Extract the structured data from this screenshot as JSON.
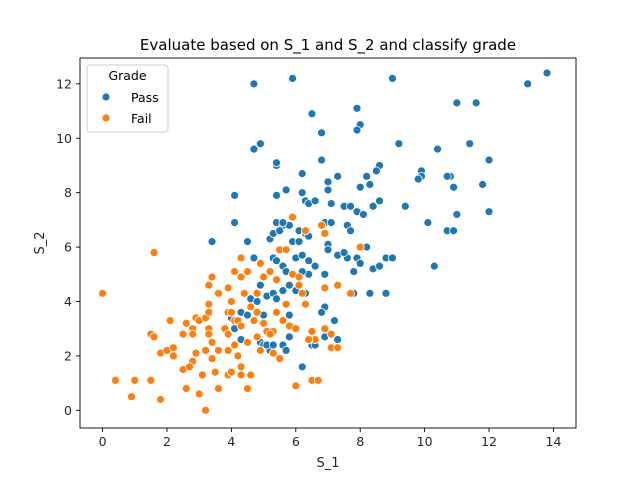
{
  "chart_data": {
    "type": "scatter",
    "title": "Evaluate based on S_1 and S_2 and classify grade",
    "xlabel": "S_1",
    "ylabel": "S_2",
    "xlim": [
      -0.7,
      14.7
    ],
    "ylim": [
      -0.65,
      12.95
    ],
    "xticks": [
      0,
      2,
      4,
      6,
      8,
      10,
      12,
      14
    ],
    "yticks": [
      0,
      2,
      4,
      6,
      8,
      10,
      12
    ],
    "grid": false,
    "legend": {
      "title": "Grade",
      "position": "top-left"
    },
    "series": [
      {
        "name": "Pass",
        "color": "#1f77b4",
        "points": [
          [
            4.7,
            12.0
          ],
          [
            5.9,
            12.2
          ],
          [
            9.0,
            12.2
          ],
          [
            13.8,
            12.4
          ],
          [
            13.2,
            12.0
          ],
          [
            11.0,
            11.3
          ],
          [
            11.6,
            11.3
          ],
          [
            6.5,
            10.9
          ],
          [
            7.9,
            11.1
          ],
          [
            8.0,
            10.5
          ],
          [
            7.9,
            10.3
          ],
          [
            6.8,
            10.2
          ],
          [
            11.4,
            9.8
          ],
          [
            9.2,
            9.8
          ],
          [
            10.4,
            9.6
          ],
          [
            4.9,
            9.8
          ],
          [
            4.7,
            9.6
          ],
          [
            6.8,
            9.2
          ],
          [
            5.4,
            9.0
          ],
          [
            5.4,
            9.1
          ],
          [
            12.0,
            9.2
          ],
          [
            8.6,
            9.0
          ],
          [
            8.5,
            8.8
          ],
          [
            6.2,
            8.7
          ],
          [
            7.3,
            8.6
          ],
          [
            8.2,
            8.6
          ],
          [
            8.3,
            8.3
          ],
          [
            8.0,
            8.2
          ],
          [
            9.9,
            8.8
          ],
          [
            9.9,
            8.6
          ],
          [
            10.8,
            8.6
          ],
          [
            10.7,
            8.6
          ],
          [
            9.8,
            8.5
          ],
          [
            11.8,
            8.3
          ],
          [
            10.9,
            8.2
          ],
          [
            7.0,
            8.4
          ],
          [
            7.0,
            8.1
          ],
          [
            6.2,
            8.0
          ],
          [
            5.7,
            8.1
          ],
          [
            4.1,
            7.9
          ],
          [
            5.4,
            7.9
          ],
          [
            8.6,
            7.7
          ],
          [
            8.4,
            7.5
          ],
          [
            7.5,
            7.5
          ],
          [
            7.7,
            7.5
          ],
          [
            7.9,
            7.3
          ],
          [
            8.1,
            7.2
          ],
          [
            9.4,
            7.5
          ],
          [
            6.3,
            7.7
          ],
          [
            6.4,
            7.6
          ],
          [
            6.6,
            7.7
          ],
          [
            7.1,
            7.6
          ],
          [
            11.0,
            7.2
          ],
          [
            12.0,
            7.3
          ],
          [
            4.1,
            6.9
          ],
          [
            5.4,
            6.9
          ],
          [
            5.6,
            6.8
          ],
          [
            5.8,
            6.8
          ],
          [
            6.1,
            6.6
          ],
          [
            6.3,
            6.5
          ],
          [
            6.4,
            6.4
          ],
          [
            6.9,
            6.9
          ],
          [
            7.1,
            6.9
          ],
          [
            7.6,
            6.8
          ],
          [
            7.7,
            6.6
          ],
          [
            8.2,
            6.0
          ],
          [
            7.9,
            5.6
          ],
          [
            8.0,
            5.4
          ],
          [
            8.4,
            5.2
          ],
          [
            8.6,
            5.3
          ],
          [
            8.8,
            5.6
          ],
          [
            9.0,
            5.6
          ],
          [
            10.1,
            6.9
          ],
          [
            10.7,
            6.6
          ],
          [
            10.9,
            6.6
          ],
          [
            10.3,
            5.3
          ],
          [
            3.4,
            6.2
          ],
          [
            4.5,
            6.2
          ],
          [
            5.2,
            6.3
          ],
          [
            5.3,
            6.5
          ],
          [
            5.5,
            6.6
          ],
          [
            5.6,
            6.9
          ],
          [
            5.9,
            6.2
          ],
          [
            6.1,
            6.2
          ],
          [
            7.0,
            6.1
          ],
          [
            7.0,
            5.9
          ],
          [
            7.3,
            5.7
          ],
          [
            7.6,
            5.6
          ],
          [
            7.5,
            5.8
          ],
          [
            4.7,
            5.6
          ],
          [
            5.3,
            5.6
          ],
          [
            5.4,
            5.5
          ],
          [
            5.6,
            5.3
          ],
          [
            5.7,
            5.1
          ],
          [
            6.0,
            5.6
          ],
          [
            6.2,
            5.7
          ],
          [
            6.4,
            5.5
          ],
          [
            6.6,
            5.3
          ],
          [
            6.9,
            5.0
          ],
          [
            4.9,
            4.6
          ],
          [
            5.1,
            4.2
          ],
          [
            5.3,
            4.3
          ],
          [
            5.4,
            4.1
          ],
          [
            5.6,
            4.4
          ],
          [
            5.8,
            4.6
          ],
          [
            6.0,
            4.4
          ],
          [
            6.3,
            4.3
          ],
          [
            4.4,
            4.3
          ],
          [
            4.6,
            4.1
          ],
          [
            4.8,
            4.0
          ],
          [
            4.0,
            3.4
          ],
          [
            4.3,
            3.6
          ],
          [
            4.5,
            3.5
          ],
          [
            5.0,
            3.5
          ],
          [
            5.4,
            3.6
          ],
          [
            5.6,
            3.3
          ],
          [
            5.8,
            3.5
          ],
          [
            6.9,
            3.8
          ],
          [
            6.8,
            3.6
          ],
          [
            7.2,
            3.3
          ],
          [
            4.1,
            3.0
          ],
          [
            4.3,
            2.6
          ],
          [
            4.9,
            2.5
          ],
          [
            5.0,
            2.4
          ],
          [
            5.2,
            2.2
          ],
          [
            5.1,
            2.4
          ],
          [
            5.3,
            2.4
          ],
          [
            5.6,
            2.4
          ],
          [
            5.8,
            2.7
          ],
          [
            5.7,
            2.2
          ],
          [
            6.5,
            2.4
          ],
          [
            6.6,
            2.4
          ],
          [
            7.3,
            2.6
          ],
          [
            6.9,
            2.7
          ],
          [
            5.5,
            1.9
          ],
          [
            6.2,
            1.6
          ],
          [
            7.8,
            4.3
          ],
          [
            8.3,
            4.3
          ],
          [
            8.8,
            4.3
          ],
          [
            6.4,
            5.0
          ],
          [
            6.2,
            5.1
          ],
          [
            7.8,
            5.1
          ]
        ]
      },
      {
        "name": "Fail",
        "color": "#ff7f0e",
        "points": [
          [
            0.0,
            4.3
          ],
          [
            0.4,
            1.1
          ],
          [
            1.0,
            1.1
          ],
          [
            1.5,
            1.1
          ],
          [
            0.9,
            0.5
          ],
          [
            1.8,
            0.4
          ],
          [
            1.6,
            5.8
          ],
          [
            1.5,
            2.8
          ],
          [
            1.6,
            2.7
          ],
          [
            1.8,
            2.1
          ],
          [
            2.0,
            2.2
          ],
          [
            2.1,
            3.3
          ],
          [
            2.2,
            2.3
          ],
          [
            2.2,
            2.0
          ],
          [
            2.5,
            2.8
          ],
          [
            2.5,
            1.5
          ],
          [
            2.6,
            3.2
          ],
          [
            2.8,
            3.0
          ],
          [
            2.8,
            2.8
          ],
          [
            2.9,
            3.4
          ],
          [
            2.8,
            1.8
          ],
          [
            2.9,
            2.1
          ],
          [
            2.7,
            1.6
          ],
          [
            3.0,
            3.3
          ],
          [
            3.1,
            1.3
          ],
          [
            3.2,
            3.4
          ],
          [
            3.3,
            3.0
          ],
          [
            3.3,
            2.8
          ],
          [
            3.2,
            2.2
          ],
          [
            3.4,
            2.5
          ],
          [
            3.4,
            1.9
          ],
          [
            3.5,
            1.4
          ],
          [
            3.6,
            0.8
          ],
          [
            3.0,
            0.6
          ],
          [
            3.2,
            0.0
          ],
          [
            2.6,
            0.8
          ],
          [
            3.3,
            4.6
          ],
          [
            3.4,
            4.9
          ],
          [
            3.3,
            3.9
          ],
          [
            3.3,
            3.6
          ],
          [
            3.6,
            4.3
          ],
          [
            3.9,
            4.5
          ],
          [
            4.0,
            4.0
          ],
          [
            3.9,
            3.6
          ],
          [
            4.0,
            3.6
          ],
          [
            3.8,
            3.0
          ],
          [
            3.9,
            2.8
          ],
          [
            4.1,
            3.3
          ],
          [
            4.2,
            3.3
          ],
          [
            4.3,
            3.1
          ],
          [
            4.1,
            2.4
          ],
          [
            3.9,
            2.2
          ],
          [
            3.6,
            2.2
          ],
          [
            4.2,
            2.0
          ],
          [
            4.3,
            1.6
          ],
          [
            3.9,
            1.3
          ],
          [
            4.0,
            1.4
          ],
          [
            4.3,
            1.3
          ],
          [
            4.6,
            1.3
          ],
          [
            4.5,
            0.8
          ],
          [
            4.1,
            5.1
          ],
          [
            4.3,
            4.9
          ],
          [
            4.3,
            5.6
          ],
          [
            4.5,
            5.1
          ],
          [
            4.4,
            4.3
          ],
          [
            4.8,
            4.3
          ],
          [
            4.7,
            3.3
          ],
          [
            4.8,
            3.6
          ],
          [
            5.0,
            3.2
          ],
          [
            5.1,
            2.9
          ],
          [
            5.3,
            2.9
          ],
          [
            5.4,
            3.6
          ],
          [
            5.6,
            3.3
          ],
          [
            4.8,
            2.7
          ],
          [
            4.9,
            2.2
          ],
          [
            4.5,
            2.5
          ],
          [
            5.3,
            2.1
          ],
          [
            5.5,
            1.9
          ],
          [
            4.9,
            5.4
          ],
          [
            5.0,
            4.9
          ],
          [
            5.2,
            5.1
          ],
          [
            5.4,
            4.8
          ],
          [
            5.5,
            5.9
          ],
          [
            5.7,
            5.9
          ],
          [
            5.9,
            5.0
          ],
          [
            6.1,
            4.9
          ],
          [
            6.1,
            4.6
          ],
          [
            6.2,
            4.3
          ],
          [
            5.7,
            3.9
          ],
          [
            6.3,
            3.9
          ],
          [
            5.8,
            3.1
          ],
          [
            6.0,
            3.0
          ],
          [
            6.5,
            2.9
          ],
          [
            6.6,
            2.6
          ],
          [
            6.4,
            2.6
          ],
          [
            7.1,
            2.3
          ],
          [
            7.3,
            2.3
          ],
          [
            6.5,
            1.1
          ],
          [
            6.7,
            1.1
          ],
          [
            6.0,
            0.9
          ],
          [
            6.9,
            4.5
          ],
          [
            7.3,
            4.6
          ],
          [
            6.9,
            3.0
          ],
          [
            7.1,
            2.8
          ],
          [
            6.9,
            6.5
          ],
          [
            6.8,
            6.8
          ],
          [
            5.9,
            7.1
          ],
          [
            6.3,
            6.6
          ],
          [
            8.0,
            6.0
          ],
          [
            7.7,
            4.3
          ],
          [
            5.2,
            2.8
          ],
          [
            4.6,
            3.8
          ]
        ]
      }
    ]
  }
}
